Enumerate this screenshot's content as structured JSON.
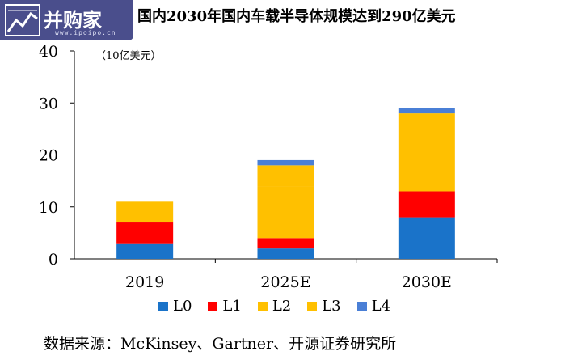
{
  "logo": {
    "text": "并购家",
    "url": "www.ipoipo.cn"
  },
  "title": "国内2030年国内车载半导体规模达到290亿美元",
  "unit_label": "（10亿美元）",
  "source": "数据来源：McKinsey、Gartner、开源证券研究所",
  "colors": {
    "L0": "#1a73c9",
    "L1": "#ff0000",
    "L2": "#ffc000",
    "L3": "#ffc000",
    "L4": "#4a7fd6"
  },
  "chart_data": {
    "type": "bar",
    "stacked": true,
    "categories": [
      "2019",
      "2025E",
      "2030E"
    ],
    "series": [
      {
        "name": "L0",
        "values": [
          3,
          2,
          8
        ]
      },
      {
        "name": "L1",
        "values": [
          4,
          2,
          5
        ]
      },
      {
        "name": "L2",
        "values": [
          4,
          10,
          0
        ]
      },
      {
        "name": "L3",
        "values": [
          0,
          4,
          15
        ]
      },
      {
        "name": "L4",
        "values": [
          0,
          1,
          1
        ]
      }
    ],
    "ylim": [
      0,
      40
    ],
    "yticks": [
      "0",
      "10",
      "20",
      "30",
      "40"
    ],
    "legend_position": "bottom",
    "grid": false
  }
}
